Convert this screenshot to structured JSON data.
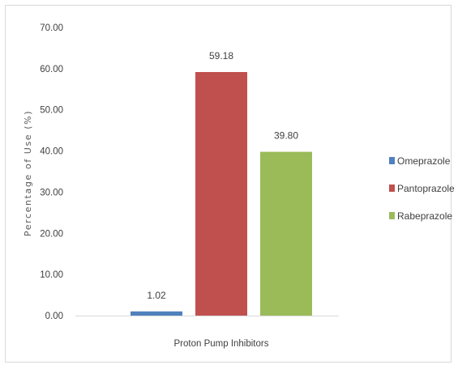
{
  "chart_data": {
    "type": "bar",
    "title": "",
    "xlabel": "Proton Pump Inhibitors",
    "ylabel": "Percentage of Use  (%)",
    "ylim": [
      0,
      70
    ],
    "yticks": [
      "0.00",
      "10.00",
      "20.00",
      "30.00",
      "40.00",
      "50.00",
      "60.00",
      "70.00"
    ],
    "grid": false,
    "legend": "right",
    "categories": [
      "Proton Pump Inhibitors"
    ],
    "series": [
      {
        "name": "Omeprazole",
        "values": [
          1.02
        ],
        "label": "1.02",
        "color": "#4f81bd"
      },
      {
        "name": "Pantoprazole",
        "values": [
          59.18
        ],
        "label": "59.18",
        "color": "#c0504d"
      },
      {
        "name": "Rabeprazole",
        "values": [
          39.8
        ],
        "label": "39.80",
        "color": "#9bbb59"
      }
    ]
  }
}
